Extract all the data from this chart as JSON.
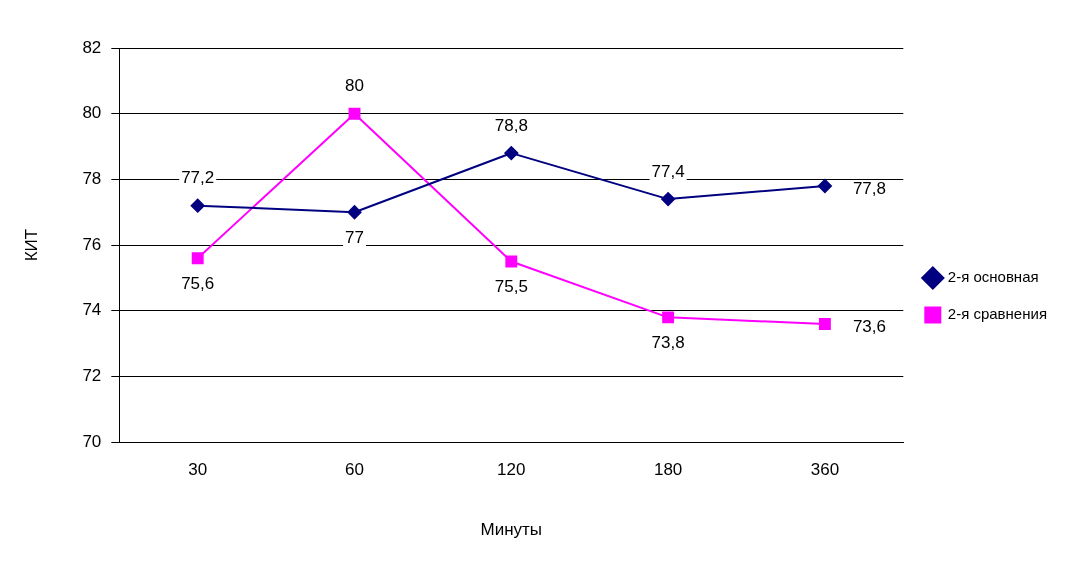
{
  "chart_data": {
    "type": "line",
    "xlabel": "Минуты",
    "ylabel": "КИТ",
    "categories": [
      "30",
      "60",
      "120",
      "180",
      "360"
    ],
    "series": [
      {
        "name": "2-я основная",
        "color": "#000080",
        "marker": "diamond",
        "values": [
          77.2,
          77,
          78.8,
          77.4,
          77.8
        ],
        "value_labels": [
          "77,2",
          "77",
          "78,8",
          "77,4",
          "77,8"
        ]
      },
      {
        "name": "2-я сравнения",
        "color": "#ff00ff",
        "marker": "square",
        "values": [
          75.6,
          80,
          75.5,
          73.8,
          73.6
        ],
        "value_labels": [
          "75,6",
          "80",
          "75,5",
          "73,8",
          "73,6"
        ]
      }
    ],
    "ylim": [
      70,
      82
    ],
    "yticks": [
      70,
      72,
      74,
      76,
      78,
      80,
      82
    ],
    "grid": "y",
    "legend": "right"
  }
}
